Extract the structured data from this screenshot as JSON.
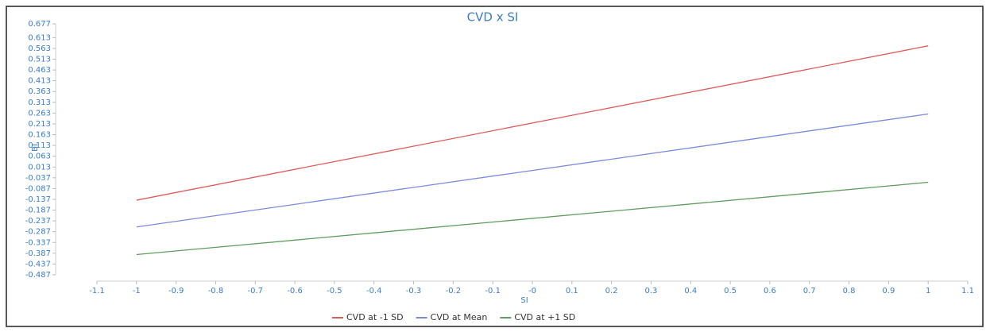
{
  "chart_data": {
    "type": "line",
    "title": "CVD x SI",
    "x_label": "SI",
    "y_label": "BI",
    "x": [
      -1,
      1
    ],
    "series": [
      {
        "name": "CVD at -1 SD",
        "color": "#e05a5a",
        "values": [
          -0.141,
          0.575
        ]
      },
      {
        "name": "CVD at Mean",
        "color": "#7b8be0",
        "values": [
          -0.265,
          0.259
        ]
      },
      {
        "name": "CVD at +1 SD",
        "color": "#5e9e5e",
        "values": [
          -0.393,
          -0.058
        ]
      }
    ],
    "xlim": [
      -1.1,
      1.1
    ],
    "xticks": [
      -1.1,
      -1,
      -0.9,
      -0.8,
      -0.7,
      -0.6,
      -0.5,
      -0.4,
      -0.3,
      -0.2,
      -0.1,
      {
        "value": 0,
        "label": "-0"
      },
      0.1,
      0.2,
      0.3,
      0.4,
      0.5,
      0.6,
      0.7,
      0.8,
      0.9,
      1,
      1.1
    ],
    "ylim": [
      -0.487,
      0.677
    ],
    "yticks": [
      -0.487,
      -0.437,
      -0.387,
      -0.337,
      -0.287,
      -0.237,
      -0.187,
      -0.137,
      -0.087,
      -0.037,
      0.013,
      0.063,
      0.113,
      0.163,
      0.213,
      0.263,
      0.313,
      0.363,
      0.413,
      0.463,
      0.513,
      0.563,
      0.613,
      0.677
    ],
    "legend": "bottom"
  }
}
